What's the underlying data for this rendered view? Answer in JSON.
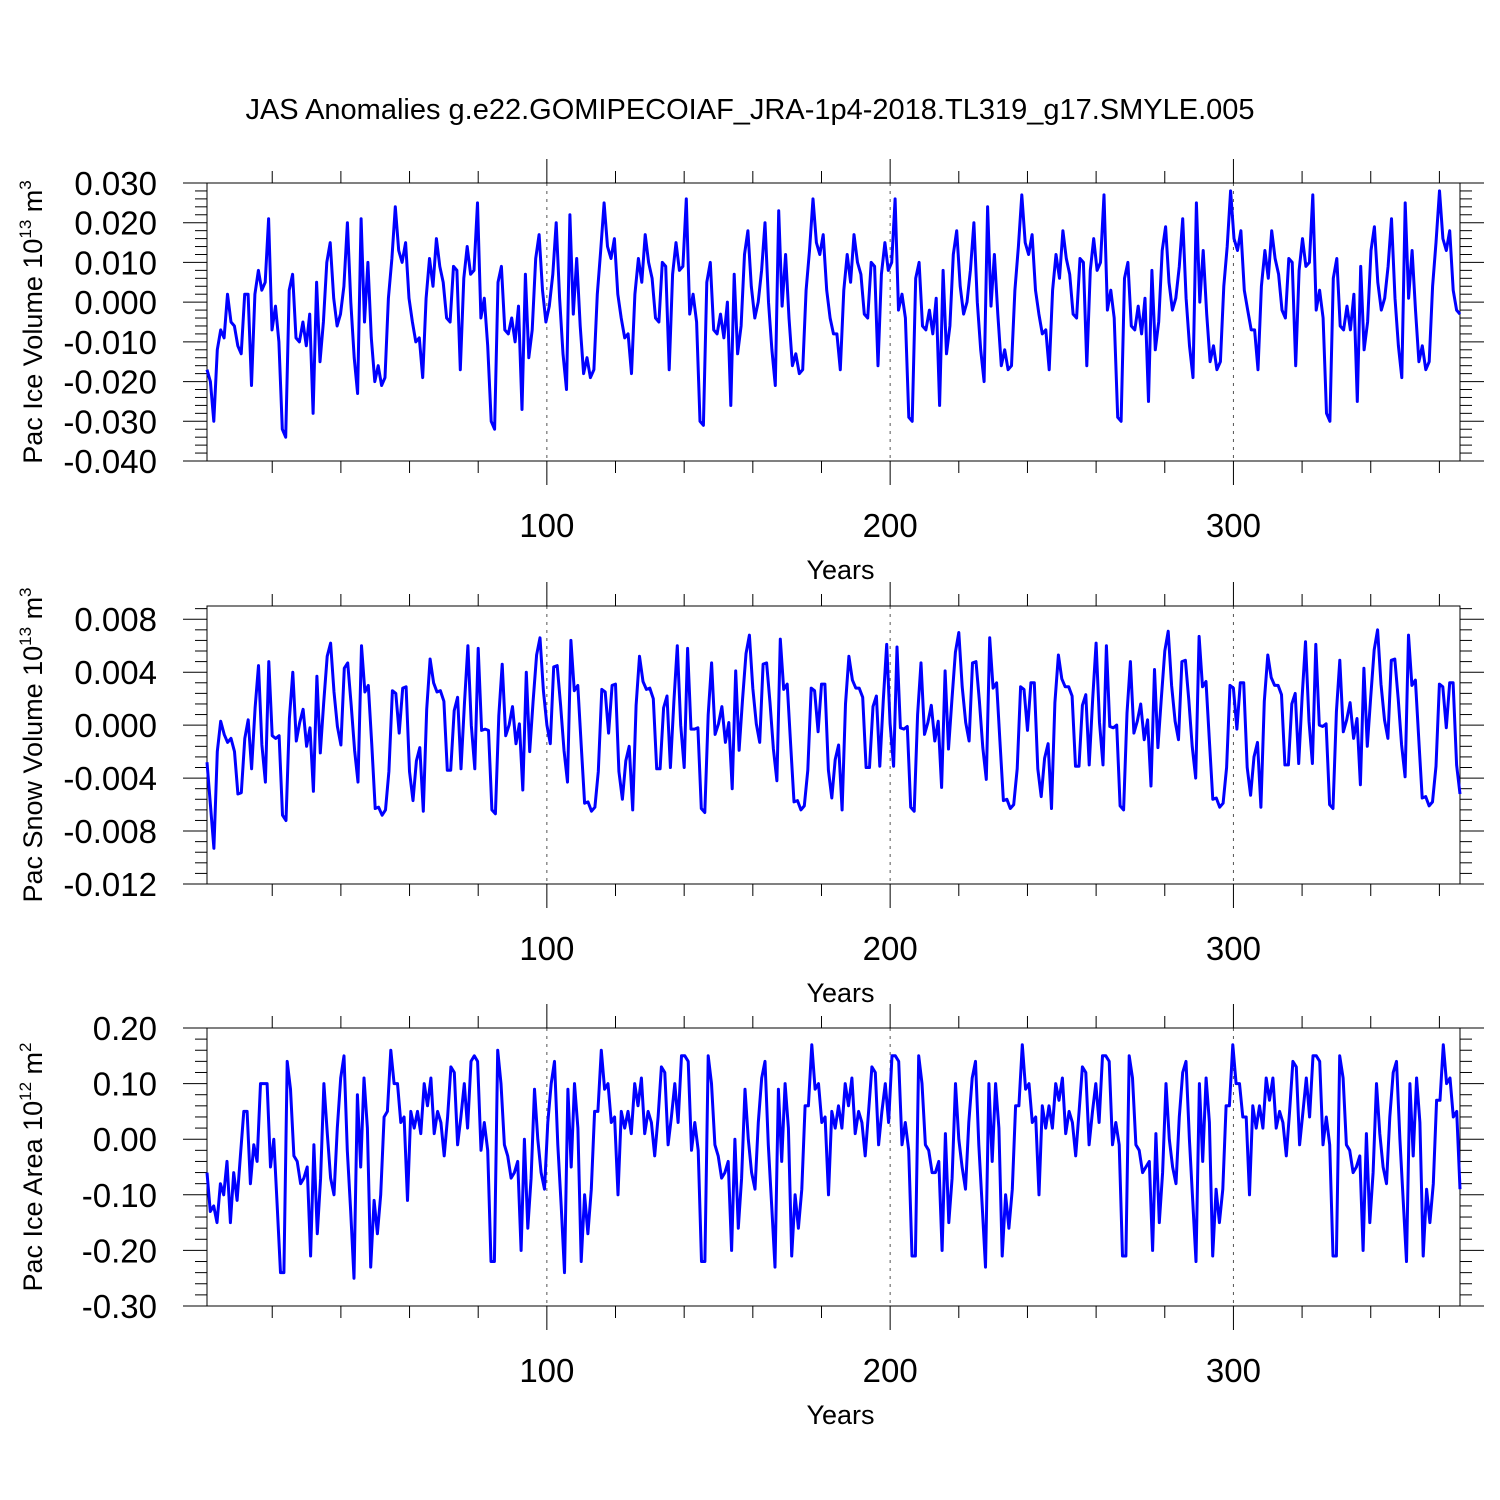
{
  "title": "JAS Anomalies g.e22.GOMIPECOIAF_JRA-1p4-2018.TL319_g17.SMYLE.005",
  "line_color": "#0000ff",
  "chart_data": [
    {
      "type": "line",
      "title": "",
      "xlabel": "Years",
      "ylabel": {
        "prefix": "Pac Ice Volume 10",
        "exponent": "13",
        "unit": " m",
        "unit_exp": "3"
      },
      "xlim": [
        1,
        366
      ],
      "ylim": [
        -0.04,
        0.03
      ],
      "xticks": [
        100,
        200,
        300
      ],
      "xtick_labels": [
        "100",
        "200",
        "300"
      ],
      "yticks": [
        -0.04,
        -0.03,
        -0.02,
        -0.01,
        0.0,
        0.01,
        0.02,
        0.03
      ],
      "ytick_labels": [
        "-0.040",
        "-0.030",
        "-0.020",
        "-0.010",
        "0.000",
        "0.010",
        "0.020",
        "0.030"
      ],
      "ref_lines_x": [
        100,
        200,
        300
      ],
      "cycle_start": 45,
      "values": [
        -0.017,
        -0.02,
        -0.03,
        -0.012,
        -0.007,
        -0.009,
        0.002,
        -0.005,
        -0.006,
        -0.011,
        -0.013,
        0.002,
        0.002,
        -0.021,
        0.002,
        0.008,
        0.003,
        0.005,
        0.021,
        -0.007,
        -0.001,
        -0.01,
        -0.032,
        -0.034,
        0.003,
        0.007,
        -0.009,
        -0.01,
        -0.005,
        -0.011,
        -0.003,
        -0.028,
        0.005,
        -0.015,
        -0.005,
        0.01,
        0.015,
        0.001,
        -0.006,
        -0.003,
        0.004,
        0.02,
        0.0,
        -0.014,
        -0.023,
        0.021,
        -0.005,
        0.01,
        -0.009,
        -0.02,
        -0.016,
        -0.021,
        -0.019,
        0.001,
        0.011,
        0.024,
        0.013,
        0.01,
        0.015,
        0.001,
        -0.005,
        -0.01,
        -0.009,
        -0.019,
        0.001,
        0.011,
        0.004,
        0.016,
        0.009,
        0.005,
        -0.004,
        -0.005,
        0.009,
        0.008,
        -0.017,
        0.006,
        0.014,
        0.007,
        0.008,
        0.025,
        -0.004,
        0.001,
        -0.011,
        -0.03,
        -0.032,
        0.005,
        0.009,
        -0.007,
        -0.008,
        -0.004,
        -0.01,
        -0.001,
        -0.027,
        0.007,
        -0.014,
        -0.007,
        0.011,
        0.017,
        0.003,
        -0.005,
        -0.001,
        0.007,
        0.02,
        0.001,
        -0.013,
        -0.022,
        0.022,
        -0.003,
        0.011,
        -0.006,
        -0.018,
        -0.014,
        -0.019,
        -0.017,
        0.002,
        0.013,
        0.025,
        0.014,
        0.011,
        0.016,
        0.002,
        -0.004,
        -0.009,
        -0.008,
        -0.018,
        0.002,
        0.011,
        0.005,
        0.017,
        0.01,
        0.006,
        -0.004,
        -0.005,
        0.01,
        0.009,
        -0.017,
        0.007,
        0.015,
        0.008,
        0.009,
        0.026,
        -0.003,
        0.002,
        -0.005,
        -0.03,
        -0.031,
        0.005,
        0.01,
        -0.007,
        -0.008,
        -0.003,
        -0.009,
        0.0,
        -0.026,
        0.007,
        -0.013,
        -0.006,
        0.012,
        0.018,
        0.004,
        -0.004,
        0.0,
        0.008,
        0.02,
        0.0,
        -0.012,
        -0.021,
        0.023,
        -0.001,
        0.012,
        -0.004,
        -0.016,
        -0.013,
        -0.018,
        -0.017,
        0.003,
        0.013,
        0.026,
        0.015,
        0.012,
        0.017,
        0.003,
        -0.004,
        -0.008,
        -0.008,
        -0.017,
        0.003,
        0.012,
        0.005,
        0.017,
        0.01,
        0.007,
        -0.003,
        -0.004,
        0.01,
        0.009,
        -0.016,
        0.007,
        0.015,
        0.008,
        0.01,
        0.026,
        -0.002,
        0.002,
        -0.004,
        -0.029,
        -0.03,
        0.006,
        0.01,
        -0.006,
        -0.007,
        -0.002,
        -0.008,
        0.001,
        -0.026,
        0.008,
        -0.013,
        -0.006,
        0.012,
        0.018,
        0.004,
        -0.003,
        0.0,
        0.008,
        0.02,
        0.0,
        -0.012,
        -0.02,
        0.024,
        -0.001,
        0.012,
        -0.003,
        -0.016,
        -0.012,
        -0.017,
        -0.016,
        0.003,
        0.014,
        0.027,
        0.015,
        0.012,
        0.017,
        0.003,
        -0.003,
        -0.008,
        -0.007,
        -0.017,
        0.003,
        0.012,
        0.006,
        0.018,
        0.011,
        0.007,
        -0.003,
        -0.004,
        0.011,
        0.01,
        -0.016,
        0.008,
        0.016,
        0.008,
        0.01,
        0.027,
        -0.002,
        0.003,
        -0.004,
        -0.029,
        -0.03,
        0.006,
        0.01,
        -0.006,
        -0.007,
        -0.001,
        -0.008,
        0.001,
        -0.025,
        0.008,
        -0.012,
        -0.005,
        0.013,
        0.019,
        0.005,
        -0.002,
        0.001,
        0.009,
        0.021,
        0.001,
        -0.011,
        -0.019,
        0.025,
        0.0,
        0.013,
        -0.003,
        -0.015,
        -0.011,
        -0.017,
        -0.015,
        0.004,
        0.014,
        0.028,
        0.016,
        0.013,
        0.018,
        0.003,
        -0.002,
        -0.007,
        -0.007,
        -0.017,
        0.004,
        0.013,
        0.006,
        0.018,
        0.011,
        0.007,
        -0.002,
        -0.004,
        0.011,
        0.01,
        -0.016,
        0.008,
        0.016,
        0.009,
        0.01,
        0.027,
        -0.002,
        0.003,
        -0.004,
        -0.028,
        -0.03,
        0.006,
        0.011,
        -0.006,
        -0.007,
        -0.001,
        -0.007,
        0.002,
        -0.025,
        0.009,
        -0.012,
        -0.005,
        0.013,
        0.019,
        0.005,
        -0.002,
        0.001,
        0.009,
        0.021,
        0.001,
        -0.011,
        -0.019,
        0.025,
        0.001,
        0.013,
        -0.002,
        -0.015,
        -0.011,
        -0.017,
        -0.015,
        0.004,
        0.015,
        0.028,
        0.016,
        0.013,
        0.018,
        0.003,
        -0.002,
        -0.003
      ]
    },
    {
      "type": "line",
      "title": "",
      "xlabel": "Years",
      "ylabel": {
        "prefix": "Pac Snow Volume 10",
        "exponent": "13",
        "unit": " m",
        "unit_exp": "3"
      },
      "xlim": [
        1,
        366
      ],
      "ylim": [
        -0.012,
        0.009
      ],
      "xticks": [
        100,
        200,
        300
      ],
      "xtick_labels": [
        "100",
        "200",
        "300"
      ],
      "yticks": [
        -0.012,
        -0.008,
        -0.004,
        0.0,
        0.004,
        0.008
      ],
      "ytick_labels": [
        "-0.012",
        "-0.008",
        "-0.004",
        "0.000",
        "0.004",
        "0.008"
      ],
      "ref_lines_x": [
        100,
        200,
        300
      ],
      "cycle_start": 45,
      "values": [
        -0.0028,
        -0.006,
        -0.0093,
        -0.002,
        0.0003,
        -0.0007,
        -0.0013,
        -0.001,
        -0.002,
        -0.0052,
        -0.0051,
        -0.001,
        0.0004,
        -0.0033,
        0.0013,
        0.0045,
        -0.0015,
        -0.0043,
        0.0048,
        -0.0008,
        -0.001,
        -0.0008,
        -0.0068,
        -0.0072,
        0.0005,
        0.004,
        -0.0012,
        0.0002,
        0.0012,
        -0.0016,
        -0.0002,
        -0.005,
        0.0037,
        -0.0021,
        0.0017,
        0.0052,
        0.0062,
        0.0025,
        -0.0001,
        -0.0015,
        0.0043,
        0.0047,
        0.0015,
        -0.0019,
        -0.0043,
        0.006,
        0.0025,
        0.003,
        -0.0015,
        -0.0063,
        -0.0062,
        -0.0068,
        -0.0064,
        -0.0035,
        0.0026,
        0.0024,
        -0.0006,
        0.0028,
        0.0029,
        -0.0035,
        -0.0057,
        -0.0027,
        -0.0017,
        -0.0065,
        0.0012,
        0.005,
        0.0032,
        0.0025,
        0.0026,
        0.0018,
        -0.0034,
        -0.0034,
        0.0011,
        0.0021,
        -0.0033,
        0.0017,
        0.006,
        0.0,
        -0.0033,
        0.0058,
        -0.0004,
        -0.0003,
        -0.0004,
        -0.0064,
        -0.0067,
        0.0007,
        0.0046,
        -0.0008,
        0.0,
        0.0014,
        -0.0014,
        0.0001,
        -0.0049,
        0.004,
        -0.002,
        0.0018,
        0.0053,
        0.0066,
        0.0026,
        0.0,
        -0.0014,
        0.0044,
        0.0045,
        0.0015,
        -0.0019,
        -0.0043,
        0.0064,
        0.0026,
        0.003,
        -0.0015,
        -0.0059,
        -0.0058,
        -0.0065,
        -0.0062,
        -0.0035,
        0.0027,
        0.0025,
        -0.0006,
        0.003,
        0.0031,
        -0.0035,
        -0.0056,
        -0.0027,
        -0.0016,
        -0.0064,
        0.0015,
        0.0052,
        0.0033,
        0.0027,
        0.0028,
        0.002,
        -0.0033,
        -0.0033,
        0.0013,
        0.0022,
        -0.0032,
        0.0018,
        0.006,
        0.0,
        -0.0032,
        0.0058,
        -0.0003,
        -0.0003,
        -0.0002,
        -0.0063,
        -0.0066,
        0.0008,
        0.0047,
        -0.0007,
        0.0001,
        0.0014,
        -0.0013,
        0.0002,
        -0.0048,
        0.0041,
        -0.0019,
        0.0019,
        0.0054,
        0.0068,
        0.0028,
        0.0001,
        -0.0013,
        0.0046,
        0.0047,
        0.0017,
        -0.0018,
        -0.0042,
        0.0065,
        0.0027,
        0.0031,
        -0.0014,
        -0.0058,
        -0.0057,
        -0.0064,
        -0.0061,
        -0.0034,
        0.0028,
        0.0026,
        -0.0005,
        0.0031,
        0.0031,
        -0.0034,
        -0.0055,
        -0.0026,
        -0.0015,
        -0.0064,
        0.0016,
        0.0052,
        0.0034,
        0.0028,
        0.0028,
        0.0021,
        -0.0032,
        -0.0032,
        0.0014,
        0.0022,
        -0.0031,
        0.0019,
        0.0061,
        0.0001,
        -0.0031,
        0.0059,
        -0.0002,
        -0.0003,
        -0.0001,
        -0.0062,
        -0.0065,
        0.0008,
        0.0047,
        -0.0007,
        0.0002,
        0.0015,
        -0.0012,
        0.0003,
        -0.0047,
        0.0041,
        -0.0018,
        0.0019,
        0.0055,
        0.007,
        0.0029,
        0.0002,
        -0.0012,
        0.0047,
        0.0048,
        0.0018,
        -0.0017,
        -0.0041,
        0.0066,
        0.0028,
        0.0032,
        -0.0013,
        -0.0057,
        -0.0056,
        -0.0063,
        -0.006,
        -0.0033,
        0.0029,
        0.0027,
        -0.0004,
        0.0032,
        0.0032,
        -0.0033,
        -0.0054,
        -0.0025,
        -0.0014,
        -0.0063,
        0.0017,
        0.0053,
        0.0035,
        0.0029,
        0.0029,
        0.0022,
        -0.0031,
        -0.0031,
        0.0015,
        0.0023,
        -0.003,
        0.002,
        0.0062,
        0.0002,
        -0.003,
        0.006,
        -0.0001,
        -0.0002,
        0.0,
        -0.0061,
        -0.0064,
        0.0009,
        0.0048,
        -0.0006,
        0.0003,
        0.0016,
        -0.0011,
        0.0004,
        -0.0046,
        0.0042,
        -0.0017,
        0.002,
        0.0056,
        0.0071,
        0.003,
        0.0003,
        -0.0011,
        0.0048,
        0.0049,
        0.0019,
        -0.0016,
        -0.004,
        0.0067,
        0.0029,
        0.0033,
        -0.0012,
        -0.0056,
        -0.0055,
        -0.0062,
        -0.0059,
        -0.0032,
        0.003,
        0.0028,
        -0.0003,
        0.0032,
        0.0032,
        -0.0032,
        -0.0053,
        -0.0024,
        -0.0013,
        -0.0062,
        0.0018,
        0.0053,
        0.0036,
        0.003,
        0.003,
        0.0023,
        -0.003,
        -0.003,
        0.0016,
        0.0024,
        -0.0029,
        0.0021,
        0.0063,
        0.0003,
        -0.0029,
        0.0061,
        0.0,
        -0.0001,
        0.0001,
        -0.006,
        -0.0063,
        0.001,
        0.0049,
        -0.0005,
        0.0004,
        0.0017,
        -0.001,
        0.0005,
        -0.0045,
        0.0043,
        -0.0016,
        0.0021,
        0.0057,
        0.0072,
        0.0031,
        0.0004,
        -0.001,
        0.0049,
        0.005,
        0.002,
        -0.0015,
        -0.0039,
        0.0068,
        0.003,
        0.0034,
        -0.0011,
        -0.0055,
        -0.0054,
        -0.0061,
        -0.0058,
        -0.0031,
        0.0031,
        0.0029,
        -0.0002,
        0.0032,
        0.0032,
        -0.003,
        -0.0052
      ]
    },
    {
      "type": "line",
      "title": "",
      "xlabel": "Years",
      "ylabel": {
        "prefix": "Pac Ice Area 10",
        "exponent": "12",
        "unit": " m",
        "unit_exp": "2"
      },
      "xlim": [
        1,
        366
      ],
      "ylim": [
        -0.3,
        0.2
      ],
      "xticks": [
        100,
        200,
        300
      ],
      "xtick_labels": [
        "100",
        "200",
        "300"
      ],
      "yticks": [
        -0.3,
        -0.2,
        -0.1,
        0.0,
        0.1,
        0.2
      ],
      "ytick_labels": [
        "-0.30",
        "-0.20",
        "-0.10",
        "0.00",
        "0.10",
        "0.20"
      ],
      "ref_lines_x": [
        100,
        200,
        300
      ],
      "cycle_start": 45,
      "values": [
        -0.06,
        -0.13,
        -0.12,
        -0.15,
        -0.08,
        -0.1,
        -0.04,
        -0.15,
        -0.06,
        -0.11,
        -0.03,
        0.05,
        0.05,
        -0.08,
        -0.01,
        -0.04,
        0.1,
        0.1,
        0.1,
        -0.05,
        0.0,
        -0.12,
        -0.24,
        -0.24,
        0.14,
        0.09,
        -0.03,
        -0.04,
        -0.08,
        -0.07,
        -0.05,
        -0.21,
        -0.01,
        -0.17,
        -0.07,
        0.1,
        0.01,
        -0.07,
        -0.1,
        0.02,
        0.11,
        0.15,
        -0.02,
        -0.13,
        -0.25,
        0.08,
        -0.05,
        0.11,
        0.02,
        -0.23,
        -0.11,
        -0.17,
        -0.1,
        0.04,
        0.05,
        0.16,
        0.1,
        0.1,
        0.03,
        0.04,
        -0.11,
        0.05,
        0.02,
        0.05,
        0.01,
        0.1,
        0.06,
        0.11,
        0.01,
        0.05,
        0.03,
        -0.03,
        0.04,
        0.13,
        0.12,
        -0.01,
        0.04,
        0.1,
        0.02,
        0.14,
        0.15,
        0.14,
        -0.02,
        0.03,
        -0.02,
        -0.22,
        -0.22,
        0.16,
        0.1,
        -0.01,
        -0.03,
        -0.07,
        -0.06,
        -0.04,
        -0.2,
        0.0,
        -0.16,
        -0.07,
        0.09,
        0.0,
        -0.06,
        -0.09,
        0.03,
        0.1,
        0.14,
        -0.01,
        -0.12,
        -0.24,
        0.09,
        -0.05,
        0.1,
        0.02,
        -0.22,
        -0.1,
        -0.17,
        -0.09,
        0.05,
        0.05,
        0.16,
        0.09,
        0.1,
        0.03,
        0.04,
        -0.1,
        0.05,
        0.02,
        0.05,
        0.01,
        0.1,
        0.06,
        0.11,
        0.01,
        0.05,
        0.03,
        -0.03,
        0.04,
        0.13,
        0.12,
        -0.01,
        0.04,
        0.1,
        0.03,
        0.15,
        0.15,
        0.14,
        -0.02,
        0.03,
        -0.02,
        -0.22,
        -0.22,
        0.15,
        0.1,
        -0.01,
        -0.03,
        -0.07,
        -0.06,
        -0.04,
        -0.2,
        0.0,
        -0.16,
        -0.07,
        0.09,
        0.0,
        -0.06,
        -0.09,
        0.03,
        0.11,
        0.14,
        -0.01,
        -0.12,
        -0.23,
        0.09,
        -0.04,
        0.1,
        0.02,
        -0.21,
        -0.1,
        -0.16,
        -0.09,
        0.06,
        0.06,
        0.17,
        0.09,
        0.1,
        0.03,
        0.04,
        -0.1,
        0.05,
        0.02,
        0.06,
        0.02,
        0.1,
        0.06,
        0.11,
        0.01,
        0.05,
        0.03,
        -0.03,
        0.05,
        0.13,
        0.12,
        -0.01,
        0.05,
        0.1,
        0.03,
        0.15,
        0.15,
        0.14,
        -0.01,
        0.03,
        -0.02,
        -0.21,
        -0.21,
        0.15,
        0.1,
        -0.01,
        -0.02,
        -0.06,
        -0.06,
        -0.04,
        -0.2,
        0.01,
        -0.15,
        -0.07,
        0.1,
        0.0,
        -0.05,
        -0.09,
        0.03,
        0.11,
        0.14,
        -0.01,
        -0.12,
        -0.23,
        0.1,
        -0.04,
        0.1,
        0.02,
        -0.21,
        -0.1,
        -0.16,
        -0.09,
        0.06,
        0.06,
        0.17,
        0.09,
        0.1,
        0.03,
        0.04,
        -0.1,
        0.06,
        0.02,
        0.06,
        0.02,
        0.1,
        0.07,
        0.11,
        0.01,
        0.05,
        0.03,
        -0.03,
        0.05,
        0.13,
        0.12,
        -0.01,
        0.05,
        0.1,
        0.03,
        0.15,
        0.15,
        0.14,
        -0.01,
        0.03,
        -0.01,
        -0.21,
        -0.21,
        0.15,
        0.11,
        -0.01,
        -0.02,
        -0.06,
        -0.05,
        -0.04,
        -0.2,
        0.01,
        -0.15,
        -0.06,
        0.1,
        0.0,
        -0.05,
        -0.08,
        0.04,
        0.12,
        0.14,
        0.0,
        -0.11,
        -0.22,
        0.1,
        -0.04,
        0.11,
        0.03,
        -0.21,
        -0.09,
        -0.15,
        -0.09,
        0.06,
        0.06,
        0.17,
        0.1,
        0.1,
        0.04,
        0.04,
        -0.1,
        0.06,
        0.02,
        0.06,
        0.02,
        0.11,
        0.07,
        0.11,
        0.02,
        0.05,
        0.03,
        -0.03,
        0.05,
        0.14,
        0.13,
        -0.01,
        0.05,
        0.11,
        0.04,
        0.15,
        0.15,
        0.14,
        -0.01,
        0.04,
        -0.01,
        -0.21,
        -0.21,
        0.15,
        0.11,
        -0.01,
        -0.02,
        -0.06,
        -0.05,
        -0.03,
        -0.2,
        0.01,
        -0.15,
        -0.06,
        0.1,
        0.01,
        -0.05,
        -0.08,
        0.04,
        0.12,
        0.14,
        0.0,
        -0.11,
        -0.22,
        0.1,
        -0.03,
        0.11,
        0.03,
        -0.21,
        -0.09,
        -0.15,
        -0.08,
        0.07,
        0.07,
        0.17,
        0.1,
        0.11,
        0.04,
        0.05,
        -0.09
      ]
    }
  ]
}
